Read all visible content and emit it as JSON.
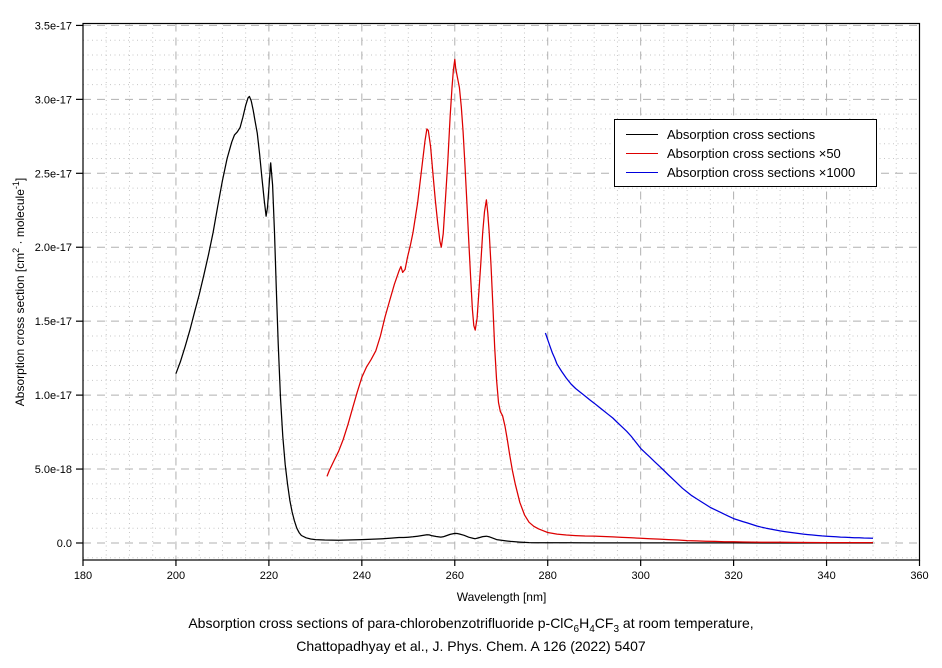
{
  "chart_data": {
    "type": "line",
    "xlabel": "Wavelength [nm]",
    "ylabel_segments": [
      {
        "t": "Absorption cross section [cm",
        "s": ""
      },
      {
        "t": "2",
        "s": "sup"
      },
      {
        "t": " · molecule",
        "s": ""
      },
      {
        "t": "-1",
        "s": "sup"
      },
      {
        "t": "]",
        "s": ""
      }
    ],
    "caption_lines": [
      [
        {
          "t": "Absorption cross sections of para-chlorobenzotrifluoride p-ClC",
          "s": ""
        },
        {
          "t": "6",
          "s": "sub"
        },
        {
          "t": "H",
          "s": ""
        },
        {
          "t": "4",
          "s": "sub"
        },
        {
          "t": "CF",
          "s": ""
        },
        {
          "t": "3",
          "s": "sub"
        },
        {
          "t": " at room temperature,",
          "s": ""
        }
      ],
      [
        {
          "t": "Chattopadhyay et al., J. Phys. Chem. A 126 (2022) 5407",
          "s": ""
        }
      ]
    ],
    "xlim": [
      180,
      360
    ],
    "ylim_1e17": [
      -0.115,
      3.513
    ],
    "y_units": "1e-17 cm^2 / molecule",
    "x_ticks": [
      180,
      200,
      220,
      240,
      260,
      280,
      300,
      320,
      340,
      360
    ],
    "x_minor_step": 5,
    "y_ticks": [
      {
        "value": 0.0,
        "label": "0.0"
      },
      {
        "value": 0.5,
        "label": "5.0e-18"
      },
      {
        "value": 1.0,
        "label": "1.0e-17"
      },
      {
        "value": 1.5,
        "label": "1.5e-17"
      },
      {
        "value": 2.0,
        "label": "2.0e-17"
      },
      {
        "value": 2.5,
        "label": "2.5e-17"
      },
      {
        "value": 3.0,
        "label": "3.0e-17"
      },
      {
        "value": 3.5,
        "label": "3.5e-17"
      }
    ],
    "y_minor_step": 0.1,
    "grid": {
      "major_color": "#b0b0b0",
      "minor_color": "#c6c6c6",
      "frame_color": "#000000"
    },
    "legend": {
      "position": "upper-right"
    },
    "series": [
      {
        "key": "absorption",
        "name": "Absorption cross sections",
        "color": "#000000",
        "points": [
          [
            200,
            1.145
          ],
          [
            201,
            1.23
          ],
          [
            202,
            1.33
          ],
          [
            203,
            1.44
          ],
          [
            204,
            1.56
          ],
          [
            205,
            1.68
          ],
          [
            206,
            1.81
          ],
          [
            207,
            1.95
          ],
          [
            208,
            2.1
          ],
          [
            209,
            2.28
          ],
          [
            210,
            2.45
          ],
          [
            211,
            2.6
          ],
          [
            212,
            2.71
          ],
          [
            212.6,
            2.76
          ],
          [
            213.2,
            2.78
          ],
          [
            213.8,
            2.81
          ],
          [
            214.4,
            2.88
          ],
          [
            215,
            2.96
          ],
          [
            215.5,
            3.01
          ],
          [
            215.8,
            3.02
          ],
          [
            216.2,
            2.99
          ],
          [
            216.6,
            2.93
          ],
          [
            217,
            2.86
          ],
          [
            217.5,
            2.77
          ],
          [
            218,
            2.63
          ],
          [
            218.5,
            2.47
          ],
          [
            219,
            2.32
          ],
          [
            219.4,
            2.21
          ],
          [
            219.7,
            2.27
          ],
          [
            220,
            2.4
          ],
          [
            220.4,
            2.57
          ],
          [
            220.8,
            2.42
          ],
          [
            221.2,
            2.1
          ],
          [
            221.6,
            1.72
          ],
          [
            222,
            1.35
          ],
          [
            222.5,
            0.98
          ],
          [
            223,
            0.72
          ],
          [
            223.5,
            0.53
          ],
          [
            224,
            0.4
          ],
          [
            224.5,
            0.29
          ],
          [
            225,
            0.21
          ],
          [
            225.5,
            0.15
          ],
          [
            226,
            0.1
          ],
          [
            226.5,
            0.07
          ],
          [
            227,
            0.051
          ],
          [
            228,
            0.035
          ],
          [
            229,
            0.027
          ],
          [
            230,
            0.023
          ],
          [
            232,
            0.02
          ],
          [
            235,
            0.019
          ],
          [
            238,
            0.021
          ],
          [
            240,
            0.023
          ],
          [
            242,
            0.025
          ],
          [
            244,
            0.028
          ],
          [
            246,
            0.032
          ],
          [
            248,
            0.037
          ],
          [
            249,
            0.037
          ],
          [
            250,
            0.039
          ],
          [
            251,
            0.042
          ],
          [
            252,
            0.046
          ],
          [
            253,
            0.051
          ],
          [
            254,
            0.056
          ],
          [
            254.5,
            0.055
          ],
          [
            255,
            0.05
          ],
          [
            256,
            0.044
          ],
          [
            257,
            0.04
          ],
          [
            257.5,
            0.042
          ],
          [
            258,
            0.047
          ],
          [
            259,
            0.058
          ],
          [
            260,
            0.065
          ],
          [
            260.5,
            0.064
          ],
          [
            261,
            0.061
          ],
          [
            262,
            0.052
          ],
          [
            263,
            0.039
          ],
          [
            264,
            0.031
          ],
          [
            264.4,
            0.029
          ],
          [
            265,
            0.034
          ],
          [
            266,
            0.043
          ],
          [
            266.8,
            0.046
          ],
          [
            267.5,
            0.041
          ],
          [
            268,
            0.035
          ],
          [
            268.5,
            0.029
          ],
          [
            269,
            0.023
          ],
          [
            270,
            0.018
          ],
          [
            271,
            0.014
          ],
          [
            272,
            0.011
          ],
          [
            273,
            0.008
          ],
          [
            274,
            0.006
          ],
          [
            275,
            0.004
          ],
          [
            276,
            0.003
          ],
          [
            278,
            0.002
          ],
          [
            280,
            0.0014
          ],
          [
            285,
            0.0011
          ],
          [
            290,
            0.0009
          ],
          [
            295,
            0.0007
          ],
          [
            300,
            0.0006
          ],
          [
            310,
            0.0004
          ],
          [
            320,
            0.0003
          ],
          [
            330,
            0.0002
          ],
          [
            340,
            0.0002
          ],
          [
            350,
            0.0002
          ]
        ]
      },
      {
        "key": "absorption-x50",
        "name": "Absorption cross sections ×50",
        "color": "#dd0000",
        "points": [
          [
            232.5,
            0.45
          ],
          [
            233,
            0.49
          ],
          [
            234,
            0.555
          ],
          [
            235,
            0.62
          ],
          [
            236,
            0.7
          ],
          [
            237,
            0.8
          ],
          [
            238,
            0.91
          ],
          [
            239,
            1.02
          ],
          [
            240,
            1.12
          ],
          [
            241,
            1.19
          ],
          [
            241.5,
            1.215
          ],
          [
            242,
            1.24
          ],
          [
            243,
            1.3
          ],
          [
            244,
            1.4
          ],
          [
            245,
            1.53
          ],
          [
            246,
            1.64
          ],
          [
            247,
            1.75
          ],
          [
            248,
            1.84
          ],
          [
            248.4,
            1.87
          ],
          [
            248.8,
            1.83
          ],
          [
            249.3,
            1.85
          ],
          [
            249.8,
            1.93
          ],
          [
            250.5,
            2.02
          ],
          [
            251,
            2.1
          ],
          [
            252,
            2.3
          ],
          [
            253,
            2.56
          ],
          [
            253.6,
            2.72
          ],
          [
            254,
            2.8
          ],
          [
            254.3,
            2.79
          ],
          [
            254.8,
            2.68
          ],
          [
            255.3,
            2.5
          ],
          [
            255.8,
            2.32
          ],
          [
            256.3,
            2.17
          ],
          [
            256.8,
            2.04
          ],
          [
            257.1,
            2.0
          ],
          [
            257.5,
            2.09
          ],
          [
            258,
            2.33
          ],
          [
            258.5,
            2.58
          ],
          [
            259,
            2.88
          ],
          [
            259.4,
            3.08
          ],
          [
            259.7,
            3.2
          ],
          [
            260,
            3.27
          ],
          [
            260.2,
            3.21
          ],
          [
            260.5,
            3.16
          ],
          [
            261,
            3.08
          ],
          [
            261.4,
            2.95
          ],
          [
            261.8,
            2.78
          ],
          [
            262.2,
            2.55
          ],
          [
            262.6,
            2.3
          ],
          [
            263,
            2.05
          ],
          [
            263.4,
            1.8
          ],
          [
            263.8,
            1.58
          ],
          [
            264.1,
            1.47
          ],
          [
            264.4,
            1.44
          ],
          [
            264.8,
            1.52
          ],
          [
            265.2,
            1.7
          ],
          [
            265.6,
            1.89
          ],
          [
            266,
            2.1
          ],
          [
            266.4,
            2.24
          ],
          [
            266.8,
            2.32
          ],
          [
            267.1,
            2.23
          ],
          [
            267.4,
            2.1
          ],
          [
            267.8,
            1.88
          ],
          [
            268.2,
            1.6
          ],
          [
            268.6,
            1.32
          ],
          [
            269,
            1.1
          ],
          [
            269.4,
            0.95
          ],
          [
            269.8,
            0.89
          ],
          [
            270.3,
            0.86
          ],
          [
            270.8,
            0.79
          ],
          [
            271.3,
            0.7
          ],
          [
            271.8,
            0.6
          ],
          [
            272.4,
            0.49
          ],
          [
            273,
            0.4
          ],
          [
            274,
            0.275
          ],
          [
            275,
            0.19
          ],
          [
            276,
            0.14
          ],
          [
            277,
            0.113
          ],
          [
            278,
            0.096
          ],
          [
            279,
            0.083
          ],
          [
            280,
            0.071
          ],
          [
            282,
            0.06
          ],
          [
            284,
            0.054
          ],
          [
            286,
            0.05
          ],
          [
            288,
            0.047
          ],
          [
            290,
            0.0465
          ],
          [
            292,
            0.044
          ],
          [
            294,
            0.041
          ],
          [
            296,
            0.038
          ],
          [
            298,
            0.035
          ],
          [
            300,
            0.0315
          ],
          [
            302,
            0.0285
          ],
          [
            304,
            0.026
          ],
          [
            306,
            0.023
          ],
          [
            308,
            0.02
          ],
          [
            310,
            0.0165
          ],
          [
            312,
            0.014
          ],
          [
            314,
            0.012
          ],
          [
            316,
            0.0105
          ],
          [
            318,
            0.009
          ],
          [
            320,
            0.008
          ],
          [
            322,
            0.007
          ],
          [
            324,
            0.0062
          ],
          [
            326,
            0.0055
          ],
          [
            328,
            0.005
          ],
          [
            330,
            0.0045
          ],
          [
            333,
            0.004
          ],
          [
            336,
            0.0035
          ],
          [
            340,
            0.003
          ],
          [
            344,
            0.0027
          ],
          [
            347,
            0.0026
          ],
          [
            350,
            0.0025
          ]
        ]
      },
      {
        "key": "absorption-x1000",
        "name": "Absorption cross sections ×1000",
        "color": "#0000dd",
        "points": [
          [
            279.5,
            1.42
          ],
          [
            280,
            1.375
          ],
          [
            280.5,
            1.33
          ],
          [
            281,
            1.285
          ],
          [
            281.5,
            1.25
          ],
          [
            282,
            1.21
          ],
          [
            283,
            1.16
          ],
          [
            284,
            1.115
          ],
          [
            285,
            1.075
          ],
          [
            286,
            1.045
          ],
          [
            287,
            1.02
          ],
          [
            288,
            0.995
          ],
          [
            289,
            0.97
          ],
          [
            290,
            0.945
          ],
          [
            291,
            0.92
          ],
          [
            292,
            0.895
          ],
          [
            293,
            0.87
          ],
          [
            294,
            0.845
          ],
          [
            295,
            0.815
          ],
          [
            296,
            0.785
          ],
          [
            297,
            0.755
          ],
          [
            298,
            0.72
          ],
          [
            299,
            0.68
          ],
          [
            300,
            0.64
          ],
          [
            301,
            0.61
          ],
          [
            302,
            0.58
          ],
          [
            303,
            0.55
          ],
          [
            304,
            0.52
          ],
          [
            305,
            0.49
          ],
          [
            306,
            0.46
          ],
          [
            307,
            0.43
          ],
          [
            308,
            0.4
          ],
          [
            309,
            0.37
          ],
          [
            310,
            0.345
          ],
          [
            311,
            0.32
          ],
          [
            312,
            0.3
          ],
          [
            313,
            0.28
          ],
          [
            314,
            0.26
          ],
          [
            315,
            0.24
          ],
          [
            316,
            0.225
          ],
          [
            317,
            0.21
          ],
          [
            318,
            0.195
          ],
          [
            319,
            0.18
          ],
          [
            320,
            0.165
          ],
          [
            321,
            0.155
          ],
          [
            322,
            0.145
          ],
          [
            323,
            0.135
          ],
          [
            324,
            0.125
          ],
          [
            325,
            0.115
          ],
          [
            326,
            0.107
          ],
          [
            327,
            0.1
          ],
          [
            328,
            0.094
          ],
          [
            329,
            0.088
          ],
          [
            330,
            0.082
          ],
          [
            331,
            0.077
          ],
          [
            332,
            0.072
          ],
          [
            333,
            0.068
          ],
          [
            334,
            0.064
          ],
          [
            335,
            0.06
          ],
          [
            336,
            0.057
          ],
          [
            337,
            0.054
          ],
          [
            338,
            0.051
          ],
          [
            339,
            0.048
          ],
          [
            340,
            0.046
          ],
          [
            341,
            0.044
          ],
          [
            342,
            0.042
          ],
          [
            343,
            0.04
          ],
          [
            344,
            0.039
          ],
          [
            345,
            0.037
          ],
          [
            346,
            0.036
          ],
          [
            347,
            0.035
          ],
          [
            348,
            0.034
          ],
          [
            349,
            0.033
          ],
          [
            350,
            0.032
          ]
        ]
      }
    ]
  }
}
